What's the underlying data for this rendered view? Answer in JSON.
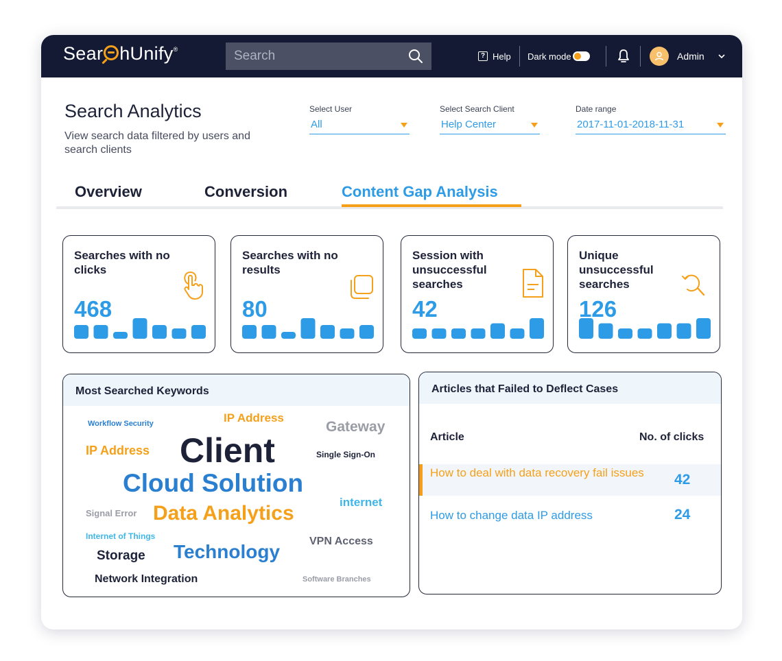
{
  "header": {
    "logo_before": "Sear",
    "logo_after": "hUnify",
    "logo_mark": "®",
    "search_placeholder": "Search",
    "help_label": "Help",
    "dark_mode_label": "Dark mode",
    "user_name": "Admin",
    "accent_color": "#f5a01a",
    "background_color": "#141a33",
    "icons": [
      "search-icon",
      "help-icon",
      "toggle-switch",
      "bell-icon",
      "user-icon",
      "chevron-down-icon"
    ]
  },
  "page": {
    "title": "Search Analytics",
    "subtitle": "View search data filtered by users and search clients"
  },
  "filters": [
    {
      "label": "Select User",
      "value": "All"
    },
    {
      "label": "Select Search Client",
      "value": "Help Center"
    },
    {
      "label": "Date range",
      "value": "2017-11-01-2018-11-31"
    }
  ],
  "tabs": [
    {
      "label": "Overview",
      "active": false
    },
    {
      "label": "Conversion",
      "active": false
    },
    {
      "label": "Content Gap Analysis",
      "active": true
    }
  ],
  "metrics": [
    {
      "title": "Searches with no clicks",
      "value": "468",
      "icon": "tap-finger-icon",
      "trend": [
        2,
        2,
        1,
        3,
        2,
        1.5,
        2
      ]
    },
    {
      "title": "Searches with no results",
      "value": "80",
      "icon": "copy-icon",
      "trend": [
        2,
        2,
        1,
        3,
        2,
        1.5,
        2
      ]
    },
    {
      "title": "Session with unsuccessful searches",
      "value": "42",
      "icon": "document-icon",
      "trend": [
        1,
        1,
        1,
        1,
        1.5,
        1,
        2
      ]
    },
    {
      "title": "Unique unsuccessful searches",
      "value": "126",
      "icon": "search-refresh-icon",
      "trend": [
        2,
        1.5,
        1,
        1,
        1.5,
        1.5,
        2
      ]
    }
  ],
  "keywords": {
    "title": "Most Searched Keywords",
    "words": [
      {
        "text": "Workflow Security",
        "color": "#2a7fd0"
      },
      {
        "text": "IP Address",
        "color": "#f5a01a"
      },
      {
        "text": "Gateway",
        "color": "#9a9ca6"
      },
      {
        "text": "IP Address",
        "color": "#f5a01a"
      },
      {
        "text": "Client",
        "color": "#1d2238"
      },
      {
        "text": "Single Sign-On",
        "color": "#1d2238"
      },
      {
        "text": "Cloud Solution",
        "color": "#2a7fd0"
      },
      {
        "text": "internet",
        "color": "#3fb6ea"
      },
      {
        "text": "Signal Error",
        "color": "#9a9ca6"
      },
      {
        "text": "Data Analytics",
        "color": "#f5a01a"
      },
      {
        "text": "Internet of Things",
        "color": "#3fb6ea"
      },
      {
        "text": "VPN Access",
        "color": "#5e6170"
      },
      {
        "text": "Storage",
        "color": "#1d2238"
      },
      {
        "text": "Technology",
        "color": "#2a7fd0"
      },
      {
        "text": "Network Integration",
        "color": "#1d2238"
      },
      {
        "text": "Software Branches",
        "color": "#9a9ca6"
      }
    ]
  },
  "articles": {
    "title": "Articles that Failed to Deflect Cases",
    "col_article": "Article",
    "col_clicks": "No. of clicks",
    "rows": [
      {
        "title": "How to deal with data recovery fail issues",
        "clicks": "42",
        "highlighted": true,
        "color": "#f5a01a"
      },
      {
        "title": "How to change data IP address",
        "clicks": "24",
        "highlighted": false,
        "color": "#2e9be6"
      }
    ]
  }
}
